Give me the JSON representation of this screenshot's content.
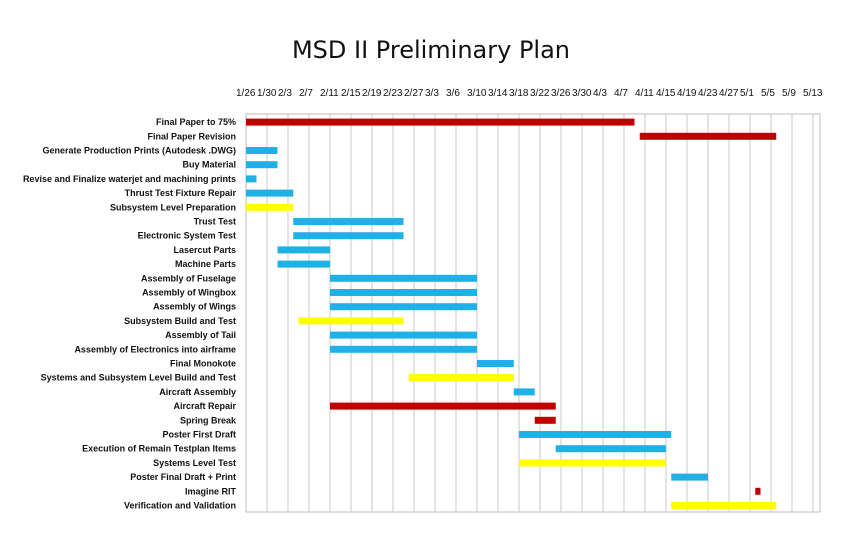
{
  "chart_data": {
    "type": "bar",
    "orientation": "horizontal-gantt",
    "title": "MSD II Preliminary Plan",
    "x_axis_position": "top",
    "x_ticks": [
      "1/26",
      "1/30",
      "2/3",
      "2/7",
      "2/11",
      "2/15",
      "2/19",
      "2/23",
      "2/27",
      "3/3",
      "3/6",
      "3/10",
      "3/14",
      "3/18",
      "3/22",
      "3/26",
      "3/30",
      "4/3",
      "4/7",
      "4/11",
      "4/15",
      "4/19",
      "4/23",
      "4/27",
      "5/1",
      "5/5",
      "5/9",
      "5/13"
    ],
    "x_range_days": [
      0,
      110
    ],
    "grid": true,
    "colors": {
      "red": "#c00000",
      "blue": "#1fb1e6",
      "yellow": "#ffff00"
    },
    "tasks": [
      {
        "name": "Final Paper to 75%",
        "start": 0,
        "end": 74,
        "color": "red"
      },
      {
        "name": "Final Paper Revision",
        "start": 75,
        "end": 101,
        "color": "red"
      },
      {
        "name": "Generate Production Prints (Autodesk .DWG)",
        "start": 0,
        "end": 6,
        "color": "blue"
      },
      {
        "name": "Buy Material",
        "start": 0,
        "end": 6,
        "color": "blue"
      },
      {
        "name": "Revise and Finalize waterjet and machining prints",
        "start": 0,
        "end": 2,
        "color": "blue"
      },
      {
        "name": "Thrust Test Fixture Repair",
        "start": 0,
        "end": 9,
        "color": "blue"
      },
      {
        "name": "Subsystem Level Preparation",
        "start": 0,
        "end": 9,
        "color": "yellow"
      },
      {
        "name": "Trust Test",
        "start": 9,
        "end": 30,
        "color": "blue"
      },
      {
        "name": "Electronic System Test",
        "start": 9,
        "end": 30,
        "color": "blue"
      },
      {
        "name": "Lasercut Parts",
        "start": 6,
        "end": 16,
        "color": "blue"
      },
      {
        "name": "Machine Parts",
        "start": 6,
        "end": 16,
        "color": "blue"
      },
      {
        "name": "Assembly of Fuselage",
        "start": 16,
        "end": 44,
        "color": "blue"
      },
      {
        "name": "Assembly of Wingbox",
        "start": 16,
        "end": 44,
        "color": "blue"
      },
      {
        "name": "Assembly of Wings",
        "start": 16,
        "end": 44,
        "color": "blue"
      },
      {
        "name": "Subsystem Build and Test",
        "start": 10,
        "end": 30,
        "color": "yellow"
      },
      {
        "name": "Assembly of Tail",
        "start": 16,
        "end": 44,
        "color": "blue"
      },
      {
        "name": "Assembly of Electronics into airframe",
        "start": 16,
        "end": 44,
        "color": "blue"
      },
      {
        "name": "Final Monokote",
        "start": 44,
        "end": 51,
        "color": "blue"
      },
      {
        "name": "Systems and Subsystem Level Build and Test",
        "start": 31,
        "end": 51,
        "color": "yellow"
      },
      {
        "name": "Aircraft Assembly",
        "start": 51,
        "end": 55,
        "color": "blue"
      },
      {
        "name": "Aircraft Repair",
        "start": 16,
        "end": 59,
        "color": "red"
      },
      {
        "name": "Spring Break",
        "start": 55,
        "end": 59,
        "color": "red"
      },
      {
        "name": "Poster First Draft",
        "start": 52,
        "end": 81,
        "color": "blue"
      },
      {
        "name": "Execution of Remain Testplan Items",
        "start": 59,
        "end": 80,
        "color": "blue"
      },
      {
        "name": "Systems Level Test",
        "start": 52,
        "end": 80,
        "color": "yellow"
      },
      {
        "name": "Poster Final Draft + Print",
        "start": 81,
        "end": 88,
        "color": "blue"
      },
      {
        "name": "Imagine RIT",
        "start": 97,
        "end": 98,
        "color": "red"
      },
      {
        "name": "Verification and Validation",
        "start": 81,
        "end": 101,
        "color": "yellow"
      }
    ]
  }
}
